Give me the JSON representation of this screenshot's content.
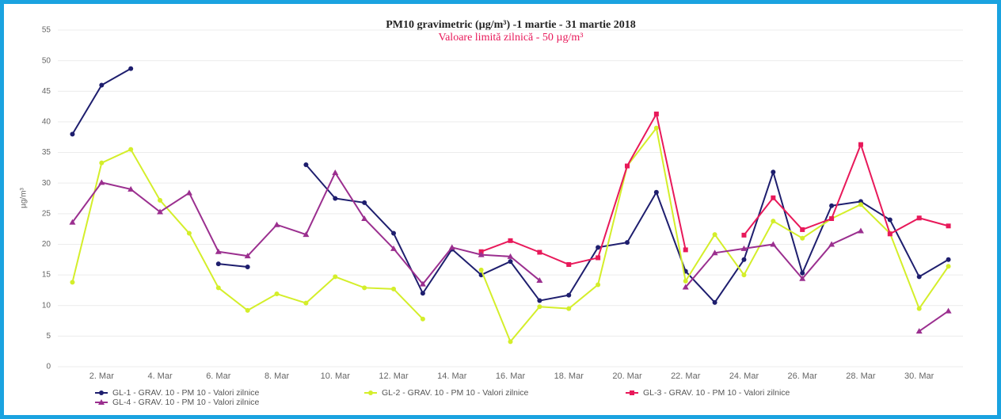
{
  "chart_data": {
    "type": "line",
    "title": "PM10 gravimetric (µg/m³) -1 martie - 31 martie 2018",
    "subtitle": "Valoare limită zilnică - 50 µg/m³",
    "y_label": "µg/m³",
    "categories": [
      null,
      "2. Mar",
      null,
      "4. Mar",
      null,
      "6. Mar",
      null,
      "8. Mar",
      null,
      "10. Mar",
      null,
      "12. Mar",
      null,
      "14. Mar",
      null,
      "16. Mar",
      null,
      "18. Mar",
      null,
      "20. Mar",
      null,
      "22. Mar",
      null,
      "24. Mar",
      null,
      "26. Mar",
      null,
      "28. Mar",
      null,
      "30. Mar",
      null
    ],
    "ylim": [
      0,
      55
    ],
    "yticks": [
      0,
      5,
      10,
      15,
      20,
      25,
      30,
      35,
      40,
      45,
      50,
      55
    ],
    "grid": true,
    "legend": "bottom",
    "series": [
      {
        "name": "GL-1 - GRAV. 10 - PM 10 - Valori zilnice",
        "color": "#1e1e6e",
        "marker": "circle",
        "values": [
          38,
          46,
          48.7,
          null,
          null,
          16.8,
          16.3,
          null,
          33,
          27.5,
          26.8,
          21.8,
          12,
          19.2,
          15,
          17.2,
          10.8,
          11.7,
          19.5,
          20.3,
          28.5,
          15.6,
          10.5,
          17.5,
          31.8,
          15.3,
          26.3,
          27,
          24,
          14.7,
          17.5
        ]
      },
      {
        "name": "GL-2 - GRAV. 10 - PM 10 - Valori zilnice",
        "color": "#d4ee2a",
        "marker": "circle",
        "values": [
          13.8,
          33.3,
          35.5,
          27.2,
          21.8,
          12.9,
          9.2,
          11.9,
          10.4,
          14.7,
          12.9,
          12.7,
          7.8,
          null,
          15.8,
          4.1,
          9.8,
          9.5,
          13.4,
          32.8,
          39,
          14,
          21.6,
          15,
          23.8,
          21,
          24.2,
          26.5,
          21.8,
          9.5,
          16.4
        ]
      },
      {
        "name": "GL-3 - GRAV. 10 - PM 10 - Valori zilnice",
        "color": "#e8195a",
        "marker": "square",
        "values": [
          null,
          null,
          null,
          null,
          null,
          null,
          null,
          null,
          null,
          null,
          null,
          null,
          null,
          null,
          18.8,
          20.6,
          18.7,
          16.7,
          17.8,
          32.8,
          41.3,
          19.1,
          null,
          21.5,
          27.6,
          22.4,
          24.2,
          36.3,
          21.7,
          24.3,
          23
        ]
      },
      {
        "name": "GL-4 - GRAV. 10 - PM 10 - Valori zilnice",
        "color": "#9b2f8f",
        "marker": "triangle",
        "values": [
          23.6,
          30.1,
          29,
          25.3,
          28.4,
          18.8,
          18.1,
          23.2,
          21.6,
          31.7,
          24.2,
          19.3,
          13.5,
          19.5,
          18.3,
          18,
          14.1,
          null,
          null,
          null,
          null,
          13,
          18.6,
          19.3,
          20,
          14.4,
          20,
          22.2,
          null,
          5.8,
          9.1
        ]
      }
    ]
  }
}
